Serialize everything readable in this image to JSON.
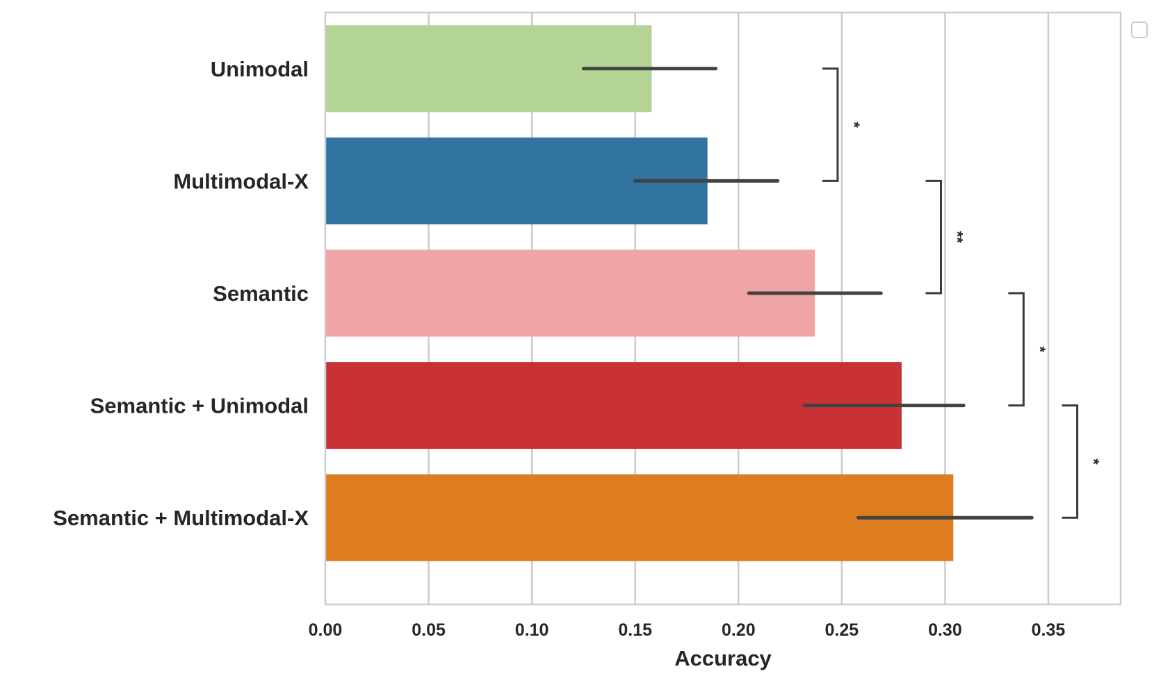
{
  "chart_data": {
    "type": "bar",
    "orientation": "horizontal",
    "title": "",
    "xlabel": "Accuracy",
    "ylabel": "",
    "xlim": [
      0,
      0.385
    ],
    "xticks": [
      "0.00",
      "0.05",
      "0.10",
      "0.15",
      "0.20",
      "0.25",
      "0.30",
      "0.35"
    ],
    "grid": "vertical",
    "legend": "empty box at top-right, outside plot",
    "categories": [
      "Unimodal",
      "Multimodal-X",
      "Semantic",
      "Semantic + Unimodal",
      "Semantic + Multimodal-X"
    ],
    "values": [
      0.158,
      0.185,
      0.237,
      0.279,
      0.304
    ],
    "error_low": [
      0.125,
      0.15,
      0.205,
      0.232,
      0.258
    ],
    "error_high": [
      0.189,
      0.219,
      0.269,
      0.309,
      0.342
    ],
    "colors": [
      "#b3d495",
      "#3174a2",
      "#efa5a5",
      "#c93235",
      "#de7d20"
    ],
    "significance": [
      {
        "from": 0,
        "to": 1,
        "label": "*",
        "x": 0.248
      },
      {
        "from": 1,
        "to": 2,
        "label": "**",
        "x": 0.298
      },
      {
        "from": 2,
        "to": 3,
        "label": "*",
        "x": 0.338
      },
      {
        "from": 3,
        "to": 4,
        "label": "*",
        "x": 0.364
      }
    ]
  }
}
